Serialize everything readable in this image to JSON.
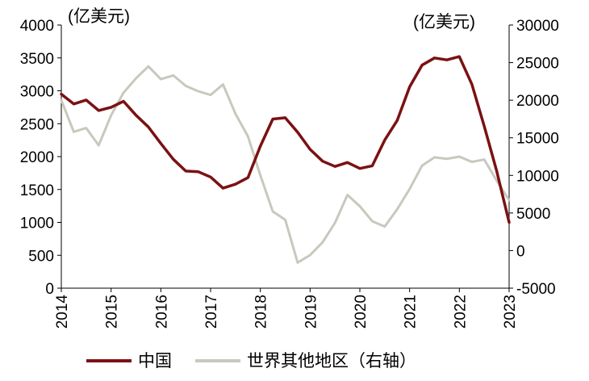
{
  "chart_data": {
    "type": "line",
    "x_ticks": [
      "2014",
      "2015",
      "2016",
      "2017",
      "2018",
      "2019",
      "2020",
      "2021",
      "2022",
      "2023"
    ],
    "y_left": {
      "unit_label": "(亿美元)",
      "ticks": [
        "0",
        "500",
        "1000",
        "1500",
        "2000",
        "2500",
        "3000",
        "3500",
        "4000"
      ],
      "range": [
        0,
        4000
      ]
    },
    "y_right": {
      "unit_label": "(亿美元)",
      "ticks": [
        "-5000",
        "0",
        "5000",
        "10000",
        "15000",
        "20000",
        "25000",
        "30000"
      ],
      "range": [
        -5000,
        30000
      ]
    },
    "legend_position": "bottom",
    "series": [
      {
        "name": "中国",
        "axis": "left",
        "color": "#7b1113",
        "x": [
          2014.0,
          2014.25,
          2014.5,
          2014.75,
          2015.0,
          2015.25,
          2015.5,
          2015.75,
          2016.0,
          2016.25,
          2016.5,
          2016.75,
          2017.0,
          2017.25,
          2017.5,
          2017.75,
          2018.0,
          2018.25,
          2018.5,
          2018.75,
          2019.0,
          2019.25,
          2019.5,
          2019.75,
          2020.0,
          2020.25,
          2020.5,
          2020.75,
          2021.0,
          2021.25,
          2021.5,
          2021.75,
          2022.0,
          2022.25,
          2022.5,
          2022.75,
          2023.0
        ],
        "values": [
          2950,
          2800,
          2860,
          2700,
          2750,
          2840,
          2630,
          2450,
          2200,
          1960,
          1780,
          1770,
          1690,
          1520,
          1580,
          1680,
          2160,
          2570,
          2590,
          2370,
          2110,
          1930,
          1850,
          1910,
          1820,
          1860,
          2250,
          2550,
          3060,
          3390,
          3500,
          3470,
          3520,
          3100,
          2460,
          1780,
          1000
        ]
      },
      {
        "name": "世界其他地区（右轴）",
        "axis": "right",
        "color": "#c8c8bd",
        "x": [
          2014.0,
          2014.25,
          2014.5,
          2014.75,
          2015.0,
          2015.25,
          2015.5,
          2015.75,
          2016.0,
          2016.25,
          2016.5,
          2016.75,
          2017.0,
          2017.25,
          2017.5,
          2017.75,
          2018.0,
          2018.25,
          2018.5,
          2018.75,
          2019.0,
          2019.25,
          2019.5,
          2019.75,
          2020.0,
          2020.25,
          2020.5,
          2020.75,
          2021.0,
          2021.25,
          2021.5,
          2021.75,
          2022.0,
          2022.25,
          2022.5,
          2022.75,
          2023.0
        ],
        "values": [
          20000,
          15800,
          16300,
          14000,
          18000,
          21000,
          22900,
          24500,
          22800,
          23300,
          21900,
          21200,
          20700,
          22100,
          18200,
          15200,
          10000,
          5200,
          4100,
          -1600,
          -600,
          1100,
          3700,
          7400,
          5900,
          3900,
          3200,
          5500,
          8200,
          11300,
          12400,
          12200,
          12500,
          11800,
          12100,
          9300,
          6700
        ]
      }
    ]
  }
}
